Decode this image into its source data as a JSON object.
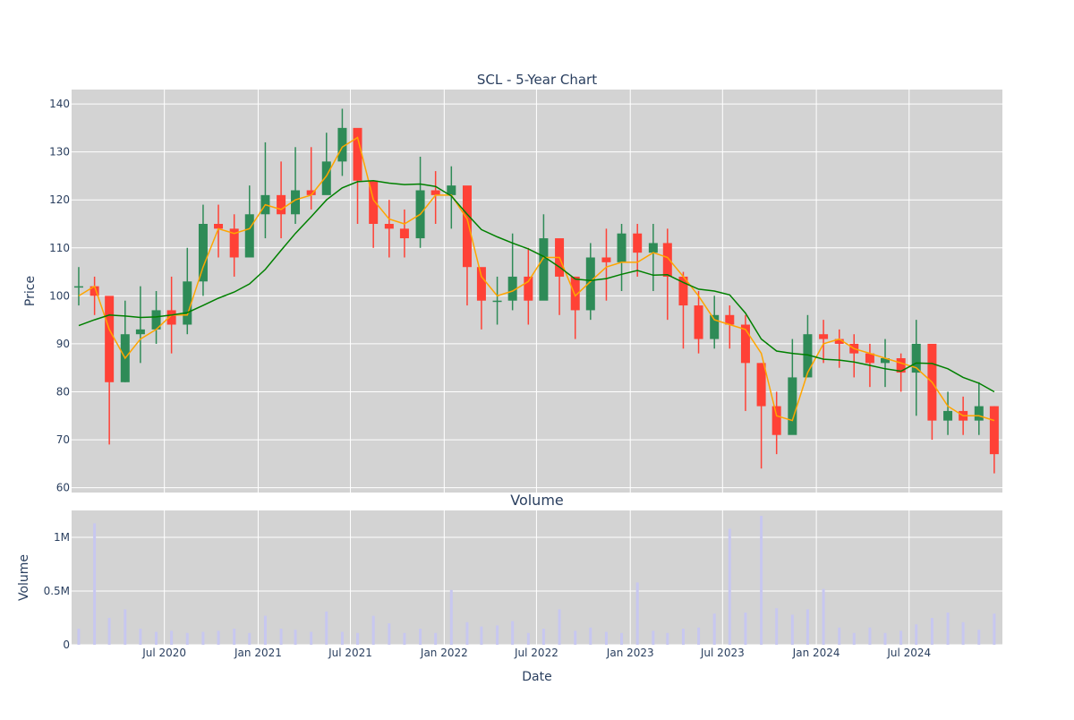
{
  "chart_data": [
    {
      "type": "candlestick",
      "title": "SCL - 5-Year Chart",
      "ylabel": "Price",
      "ylim": [
        59,
        143
      ],
      "yticks": [
        60,
        70,
        80,
        90,
        100,
        110,
        120,
        130,
        140
      ],
      "grid": true,
      "legend": "none",
      "colors": {
        "background": "#d3d3d3",
        "grid": "#ffffff",
        "up": "#2e8b57",
        "down": "#ff4136",
        "ma_short": "#ffa500",
        "ma_long": "#008000",
        "text": "#2a3f5f"
      },
      "series": [
        {
          "name": "",
          "kind": "candlestick",
          "x": [
            "2020-01",
            "2020-02",
            "2020-03",
            "2020-04",
            "2020-05",
            "2020-06",
            "2020-07",
            "2020-08",
            "2020-09",
            "2020-10",
            "2020-11",
            "2020-12",
            "2021-01",
            "2021-02",
            "2021-03",
            "2021-04",
            "2021-05",
            "2021-06",
            "2021-07",
            "2021-08",
            "2021-09",
            "2021-10",
            "2021-11",
            "2021-12",
            "2022-01",
            "2022-02",
            "2022-03",
            "2022-04",
            "2022-05",
            "2022-06",
            "2022-07",
            "2022-08",
            "2022-09",
            "2022-10",
            "2022-11",
            "2022-12",
            "2023-01",
            "2023-02",
            "2023-03",
            "2023-04",
            "2023-05",
            "2023-06",
            "2023-07",
            "2023-08",
            "2023-09",
            "2023-10",
            "2023-11",
            "2023-12",
            "2024-01",
            "2024-02",
            "2024-03",
            "2024-04",
            "2024-05",
            "2024-06",
            "2024-07",
            "2024-08",
            "2024-09",
            "2024-10",
            "2024-11",
            "2024-12"
          ],
          "close": [
            102,
            100,
            82,
            92,
            93,
            97,
            94,
            103,
            115,
            114,
            108,
            117,
            121,
            117,
            122,
            121,
            128,
            135,
            124,
            115,
            114,
            112,
            122,
            121,
            123,
            106,
            99,
            99,
            104,
            99,
            112,
            104,
            97,
            108,
            107,
            113,
            109,
            111,
            104,
            98,
            91,
            96,
            94,
            86,
            77,
            71,
            83,
            92,
            91,
            90,
            88,
            86,
            87,
            84,
            90,
            74,
            76,
            74,
            77,
            67
          ],
          "high": [
            106,
            104,
            99,
            99,
            102,
            101,
            104,
            110,
            119,
            119,
            117,
            123,
            132,
            128,
            131,
            131,
            134,
            139,
            130,
            121,
            120,
            118,
            129,
            126,
            127,
            116,
            104,
            104,
            113,
            110,
            117,
            111,
            104,
            111,
            114,
            115,
            115,
            115,
            114,
            105,
            101,
            100,
            98,
            96,
            86,
            80,
            91,
            96,
            95,
            93,
            92,
            90,
            91,
            88,
            95,
            84,
            80,
            79,
            82,
            77
          ],
          "low": [
            98,
            96,
            69,
            82,
            86,
            90,
            88,
            92,
            100,
            108,
            104,
            111,
            112,
            112,
            115,
            118,
            122,
            125,
            115,
            110,
            108,
            108,
            110,
            115,
            114,
            98,
            93,
            94,
            97,
            94,
            100,
            96,
            91,
            95,
            99,
            101,
            104,
            101,
            95,
            89,
            88,
            89,
            89,
            76,
            64,
            67,
            72,
            83,
            86,
            85,
            83,
            81,
            81,
            80,
            75,
            70,
            71,
            71,
            71,
            63
          ]
        },
        {
          "name": "",
          "kind": "line",
          "x": [
            "2020-01",
            "2020-02",
            "2020-03",
            "2020-04",
            "2020-05",
            "2020-06",
            "2020-07",
            "2020-08",
            "2020-09",
            "2020-10",
            "2020-11",
            "2020-12",
            "2021-01",
            "2021-02",
            "2021-03",
            "2021-04",
            "2021-05",
            "2021-06",
            "2021-07",
            "2021-08",
            "2021-09",
            "2021-10",
            "2021-11",
            "2021-12",
            "2022-01",
            "2022-02",
            "2022-03",
            "2022-04",
            "2022-05",
            "2022-06",
            "2022-07",
            "2022-08",
            "2022-09",
            "2022-10",
            "2022-11",
            "2022-12",
            "2023-01",
            "2023-02",
            "2023-03",
            "2023-04",
            "2023-05",
            "2023-06",
            "2023-07",
            "2023-08",
            "2023-09",
            "2023-10",
            "2023-11",
            "2023-12",
            "2024-01",
            "2024-02",
            "2024-03",
            "2024-04",
            "2024-05",
            "2024-06",
            "2024-07",
            "2024-08",
            "2024-09",
            "2024-10",
            "2024-11",
            "2024-12"
          ],
          "values": [
            100,
            102,
            93,
            87,
            91,
            93,
            96,
            96,
            106,
            114,
            113,
            114,
            119,
            118,
            120,
            121,
            125,
            131,
            133,
            120,
            116,
            115,
            117,
            121,
            121,
            116,
            104,
            100,
            101,
            103,
            108,
            108,
            100,
            103,
            106,
            107,
            107,
            109,
            108,
            104,
            100,
            95,
            94,
            93,
            88,
            75,
            74,
            84,
            90,
            91,
            89,
            88,
            87,
            86,
            85,
            82,
            77,
            75,
            75,
            74
          ]
        },
        {
          "name": "",
          "kind": "line",
          "x": [
            "2020-01",
            "2020-02",
            "2020-03",
            "2020-04",
            "2020-05",
            "2020-06",
            "2020-07",
            "2020-08",
            "2020-09",
            "2020-10",
            "2020-11",
            "2020-12",
            "2021-01",
            "2021-02",
            "2021-03",
            "2021-04",
            "2021-05",
            "2021-06",
            "2021-07",
            "2021-08",
            "2021-09",
            "2021-10",
            "2021-11",
            "2021-12",
            "2022-01",
            "2022-02",
            "2022-03",
            "2022-04",
            "2022-05",
            "2022-06",
            "2022-07",
            "2022-08",
            "2022-09",
            "2022-10",
            "2022-11",
            "2022-12",
            "2023-01",
            "2023-02",
            "2023-03",
            "2023-04",
            "2023-05",
            "2023-06",
            "2023-07",
            "2023-08",
            "2023-09",
            "2023-10",
            "2023-11",
            "2023-12",
            "2024-01",
            "2024-02",
            "2024-03",
            "2024-04",
            "2024-05",
            "2024-06",
            "2024-07",
            "2024-08",
            "2024-09",
            "2024-10",
            "2024-11",
            "2024-12"
          ],
          "values": [
            93.8,
            95.0,
            96.0,
            95.8,
            95.5,
            95.6,
            96.0,
            96.5,
            98.0,
            99.5,
            100.8,
            102.5,
            105.5,
            109.5,
            113.0,
            116.5,
            120.0,
            122.5,
            123.8,
            124.0,
            123.5,
            123.2,
            123.3,
            122.8,
            120.8,
            117.0,
            113.8,
            112.3,
            111.0,
            109.8,
            108.2,
            106.0,
            103.5,
            103.2,
            103.6,
            104.5,
            105.3,
            104.3,
            104.4,
            102.8,
            101.4,
            101.0,
            100.2,
            96.4,
            91.0,
            88.5,
            88.0,
            87.7,
            86.8,
            86.6,
            86.2,
            85.5,
            84.8,
            84.3,
            86.0,
            85.9,
            84.8,
            83.0,
            81.8,
            80.0
          ]
        }
      ]
    },
    {
      "type": "bar",
      "title": "Volume",
      "xlabel": "Date",
      "ylabel": "Volume",
      "ylim": [
        0,
        1250000
      ],
      "yticks": [
        0,
        500000,
        1000000
      ],
      "ytick_labels": [
        "0",
        "0.5M",
        "1M"
      ],
      "xticks": [
        "2020-07",
        "2021-01",
        "2021-07",
        "2022-01",
        "2022-07",
        "2023-01",
        "2023-07",
        "2024-01",
        "2024-07"
      ],
      "xtick_labels": [
        "Jul 2020",
        "Jan 2021",
        "Jul 2021",
        "Jan 2022",
        "Jul 2022",
        "Jan 2023",
        "Jul 2023",
        "Jan 2024",
        "Jul 2024"
      ],
      "grid": true,
      "colors": {
        "bar": "#c7c7f0",
        "background": "#d3d3d3"
      },
      "x": [
        "2020-01",
        "2020-02",
        "2020-03",
        "2020-04",
        "2020-05",
        "2020-06",
        "2020-07",
        "2020-08",
        "2020-09",
        "2020-10",
        "2020-11",
        "2020-12",
        "2021-01",
        "2021-02",
        "2021-03",
        "2021-04",
        "2021-05",
        "2021-06",
        "2021-07",
        "2021-08",
        "2021-09",
        "2021-10",
        "2021-11",
        "2021-12",
        "2022-01",
        "2022-02",
        "2022-03",
        "2022-04",
        "2022-05",
        "2022-06",
        "2022-07",
        "2022-08",
        "2022-09",
        "2022-10",
        "2022-11",
        "2022-12",
        "2023-01",
        "2023-02",
        "2023-03",
        "2023-04",
        "2023-05",
        "2023-06",
        "2023-07",
        "2023-08",
        "2023-09",
        "2023-10",
        "2023-11",
        "2023-12",
        "2024-01",
        "2024-02",
        "2024-03",
        "2024-04",
        "2024-05",
        "2024-06",
        "2024-07",
        "2024-08",
        "2024-09",
        "2024-10",
        "2024-11",
        "2024-12"
      ],
      "values": [
        150000,
        1130000,
        250000,
        330000,
        150000,
        120000,
        130000,
        110000,
        120000,
        130000,
        150000,
        110000,
        270000,
        150000,
        140000,
        120000,
        310000,
        120000,
        110000,
        270000,
        200000,
        110000,
        150000,
        110000,
        510000,
        210000,
        170000,
        180000,
        220000,
        110000,
        150000,
        330000,
        130000,
        160000,
        120000,
        110000,
        580000,
        130000,
        110000,
        150000,
        160000,
        290000,
        1080000,
        300000,
        1200000,
        340000,
        280000,
        330000,
        520000,
        160000,
        110000,
        160000,
        110000,
        130000,
        190000,
        250000,
        300000,
        210000,
        140000,
        290000
      ]
    }
  ]
}
